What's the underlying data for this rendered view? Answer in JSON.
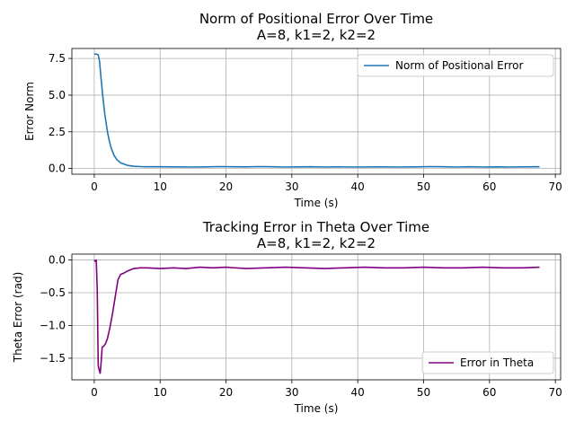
{
  "chart_data": [
    {
      "type": "line",
      "title": "Norm of Positional Error Over Time",
      "subtitle": "A=8, k1=2, k2=2",
      "xlabel": "Time (s)",
      "ylabel": "Error Norm",
      "xlim": [
        -3.4,
        70.8
      ],
      "ylim": [
        -0.39,
        8.18
      ],
      "xticks": [
        0,
        10,
        20,
        30,
        40,
        50,
        60,
        70
      ],
      "xtick_labels": [
        "0",
        "10",
        "20",
        "30",
        "40",
        "50",
        "60",
        "70"
      ],
      "yticks": [
        0,
        2.5,
        5.0,
        7.5
      ],
      "ytick_labels": [
        "0.0",
        "2.5",
        "5.0",
        "7.5"
      ],
      "grid": true,
      "legend_position": "upper right",
      "series": [
        {
          "name": "Norm of Positional Error",
          "color": "#1f77b4",
          "x": [
            0,
            0.3,
            0.6,
            0.8,
            1.0,
            1.3,
            1.6,
            2.0,
            2.3,
            2.6,
            3.0,
            3.4,
            4.0,
            5.0,
            6.0,
            7.0,
            8.0,
            10.0,
            12.0,
            15.0,
            17.0,
            19.0,
            21.0,
            23.0,
            25.0,
            27.0,
            29.0,
            31.0,
            33.0,
            35.0,
            37.0,
            40.0,
            43.0,
            46.0,
            49.0,
            51.0,
            53.0,
            55.0,
            57.0,
            59.0,
            61.0,
            63.0,
            65.0,
            67.6
          ],
          "y": [
            7.8,
            7.8,
            7.75,
            7.3,
            6.3,
            4.9,
            3.7,
            2.5,
            1.85,
            1.35,
            0.9,
            0.62,
            0.38,
            0.22,
            0.15,
            0.13,
            0.12,
            0.12,
            0.11,
            0.1,
            0.11,
            0.13,
            0.12,
            0.11,
            0.13,
            0.12,
            0.1,
            0.11,
            0.12,
            0.1,
            0.11,
            0.1,
            0.11,
            0.1,
            0.11,
            0.13,
            0.12,
            0.1,
            0.12,
            0.1,
            0.11,
            0.1,
            0.11,
            0.12
          ]
        }
      ]
    },
    {
      "type": "line",
      "title": "Tracking Error in Theta Over Time",
      "subtitle": "A=8, k1=2, k2=2",
      "xlabel": "Time (s)",
      "ylabel": "Theta Error (rad)",
      "xlim": [
        -3.4,
        70.8
      ],
      "ylim": [
        -1.83,
        0.09
      ],
      "xticks": [
        0,
        10,
        20,
        30,
        40,
        50,
        60,
        70
      ],
      "xtick_labels": [
        "0",
        "10",
        "20",
        "30",
        "40",
        "50",
        "60",
        "70"
      ],
      "yticks": [
        0,
        -0.5,
        -1.0,
        -1.5
      ],
      "ytick_labels": [
        "0.0",
        "−0.5",
        "−1.0",
        "−1.5"
      ],
      "grid": true,
      "legend_position": "lower right",
      "series": [
        {
          "name": "Error in Theta",
          "color": "#800080",
          "x": [
            0,
            0.15,
            0.3,
            0.45,
            0.6,
            0.75,
            0.9,
            1.05,
            1.2,
            1.4,
            1.7,
            2.0,
            2.4,
            2.8,
            3.2,
            3.6,
            4.0,
            4.5,
            5.0,
            5.5,
            6.0,
            7.0,
            8.0,
            10.0,
            12.0,
            14.0,
            16.0,
            18.0,
            20.0,
            23.0,
            26.0,
            29.0,
            32.0,
            35.0,
            38.0,
            41.0,
            44.0,
            47.0,
            50.0,
            53.0,
            56.0,
            59.0,
            62.0,
            65.0,
            67.6
          ],
          "y": [
            0.0,
            -0.02,
            0.0,
            -0.45,
            -1.62,
            -1.68,
            -1.73,
            -1.55,
            -1.33,
            -1.32,
            -1.28,
            -1.2,
            -1.02,
            -0.8,
            -0.55,
            -0.3,
            -0.22,
            -0.2,
            -0.17,
            -0.15,
            -0.13,
            -0.12,
            -0.12,
            -0.13,
            -0.12,
            -0.13,
            -0.11,
            -0.12,
            -0.11,
            -0.13,
            -0.12,
            -0.11,
            -0.12,
            -0.13,
            -0.12,
            -0.11,
            -0.12,
            -0.12,
            -0.11,
            -0.12,
            -0.12,
            -0.11,
            -0.12,
            -0.12,
            -0.11
          ]
        }
      ]
    }
  ]
}
